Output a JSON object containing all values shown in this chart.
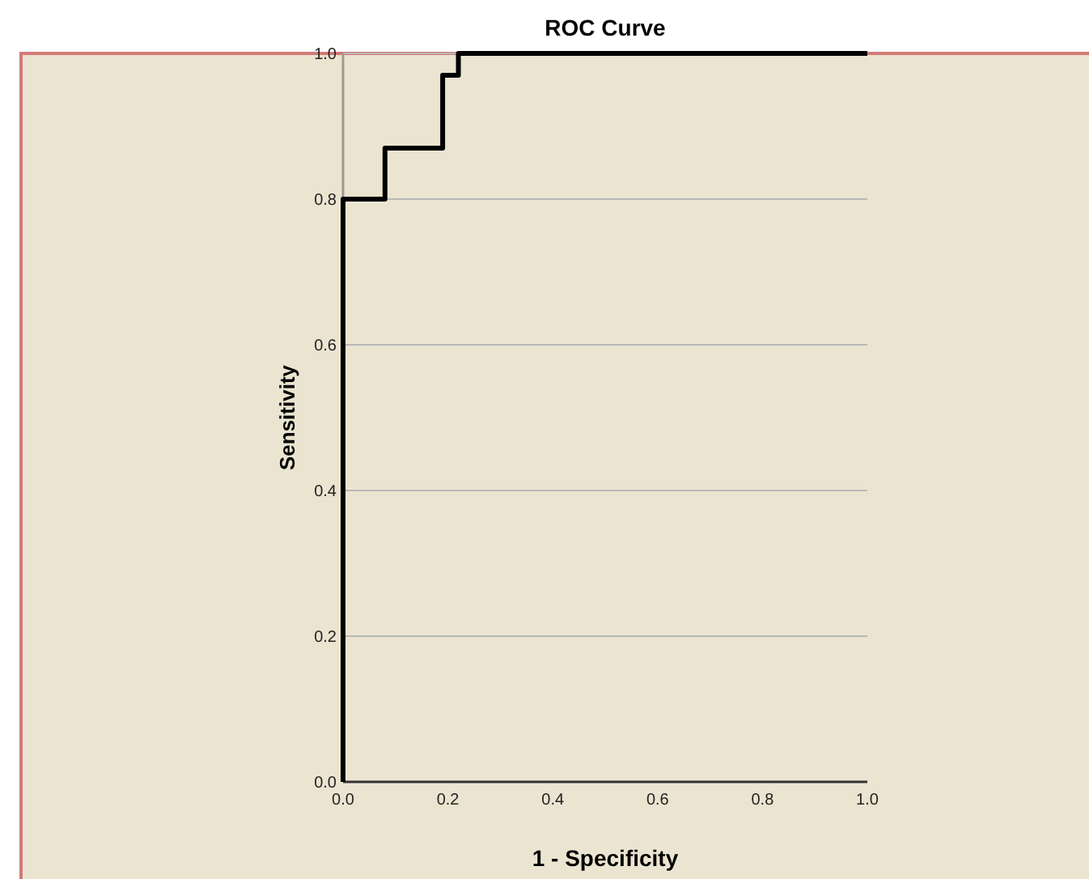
{
  "chart_data": {
    "type": "line",
    "title": "ROC Curve",
    "xlabel": "1 - Specificity",
    "ylabel": "Sensitivity",
    "x": [
      0,
      0,
      0.08,
      0.08,
      0.19,
      0.19,
      0.22,
      0.22,
      1
    ],
    "series": [
      {
        "color": "#000000",
        "values": [
          0,
          0.8,
          0.8,
          0.87,
          0.87,
          0.97,
          0.97,
          1,
          1
        ]
      }
    ],
    "xlim": [
      0,
      1
    ],
    "ylim": [
      0,
      1
    ],
    "xticks": [
      {
        "value": 0,
        "label": "0.0"
      },
      {
        "value": 0.2,
        "label": "0.2"
      },
      {
        "value": 0.4,
        "label": "0.4"
      },
      {
        "value": 0.6,
        "label": "0.6"
      },
      {
        "value": 0.8,
        "label": "0.8"
      },
      {
        "value": 1,
        "label": "1.0"
      }
    ],
    "yticks": [
      {
        "value": 0,
        "label": "0.0"
      },
      {
        "value": 0.2,
        "label": "0.2"
      },
      {
        "value": 0.4,
        "label": "0.4"
      },
      {
        "value": 0.6,
        "label": "0.6"
      },
      {
        "value": 0.8,
        "label": "0.8"
      },
      {
        "value": 1,
        "label": "1.0"
      }
    ],
    "grid": "y",
    "marker": "none",
    "line_style": "solid"
  }
}
